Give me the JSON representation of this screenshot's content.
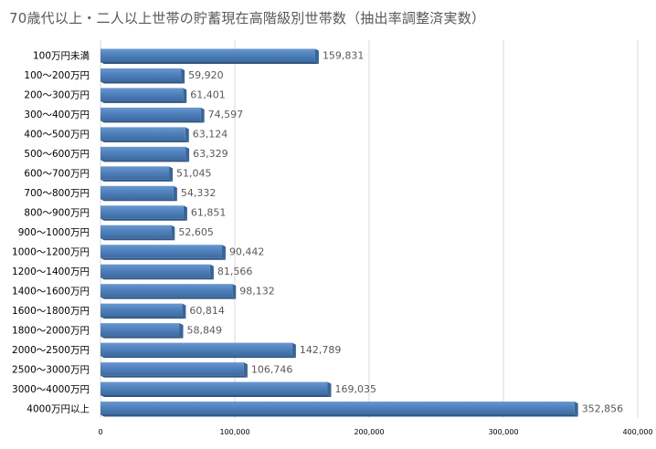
{
  "chart_data": {
    "type": "bar",
    "orientation": "horizontal",
    "title": "70歳代以上・二人以上世帯の貯蓄現在高階級別世帯数（抽出率調整済実数）",
    "categories": [
      "100万円未満",
      "100～200万円",
      "200～300万円",
      "300～400万円",
      "400～500万円",
      "500～600万円",
      "600～700万円",
      "700～800万円",
      "800～900万円",
      "900～1000万円",
      "1000～1200万円",
      "1200～1400万円",
      "1400～1600万円",
      "1600～1800万円",
      "1800～2000万円",
      "2000～2500万円",
      "2500～3000万円",
      "3000～4000万円",
      "4000万円以上"
    ],
    "values": [
      159831,
      59920,
      61401,
      74597,
      63124,
      63329,
      51045,
      54332,
      61851,
      52605,
      90442,
      81566,
      98132,
      60814,
      58849,
      142789,
      106746,
      169035,
      352856
    ],
    "value_labels": [
      "159,831",
      "59,920",
      "61,401",
      "74,597",
      "63,124",
      "63,329",
      "51,045",
      "54,332",
      "61,851",
      "52,605",
      "90,442",
      "81,566",
      "98,132",
      "60,814",
      "58,849",
      "142,789",
      "106,746",
      "169,035",
      "352,856"
    ],
    "xlim": [
      0,
      400000
    ],
    "ticks": [
      0,
      100000,
      200000,
      300000,
      400000
    ],
    "tick_labels": [
      "0",
      "100,000",
      "200,000",
      "300,000",
      "400,000"
    ],
    "grid": "vertical",
    "legend": "none",
    "bar_color": "#4f81bd"
  }
}
